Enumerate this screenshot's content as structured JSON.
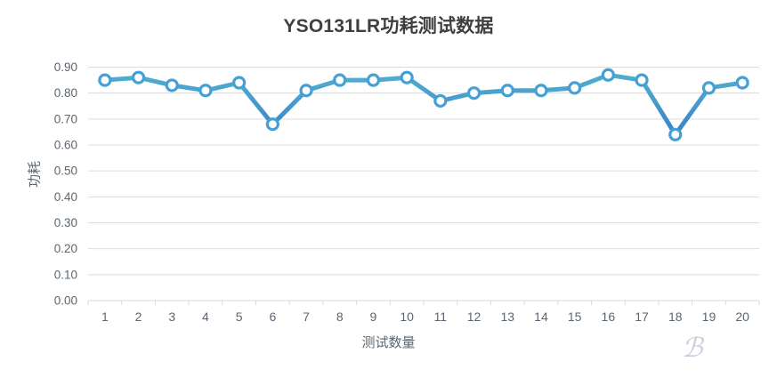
{
  "chart_data": {
    "type": "line",
    "title": "YSO131LR功耗测试数据",
    "xlabel": "测试数量",
    "ylabel": "功耗",
    "categories": [
      1,
      2,
      3,
      4,
      5,
      6,
      7,
      8,
      9,
      10,
      11,
      12,
      13,
      14,
      15,
      16,
      17,
      18,
      19,
      20
    ],
    "series": [
      {
        "name": "功耗",
        "values": [
          0.85,
          0.86,
          0.83,
          0.81,
          0.84,
          0.68,
          0.81,
          0.85,
          0.85,
          0.86,
          0.77,
          0.8,
          0.81,
          0.81,
          0.82,
          0.87,
          0.85,
          0.64,
          0.82,
          0.84
        ]
      }
    ],
    "ylim": [
      0.0,
      0.9
    ],
    "ytick_step": 0.1,
    "ytick_decimals": 2,
    "grid": "horizontal",
    "legend": "none",
    "marker": "open-circle",
    "colors": {
      "line_gradient": [
        {
          "offset": 0.0,
          "color": "#55B1CB"
        },
        {
          "offset": 0.1,
          "color": "#4AA4CF"
        },
        {
          "offset": 0.3,
          "color": "#3C7EC3"
        },
        {
          "offset": 1.0,
          "color": "#2F5FB4"
        }
      ],
      "marker_stroke": "#45A1D5",
      "marker_fill": "#FFFFFF",
      "grid": "#DCDCDC",
      "axis": "#D9D9D9",
      "tick_label": "#5B6670",
      "title": "#3F3F3F",
      "axis_title": "#5B6670",
      "watermark": "#C9CDDC"
    }
  },
  "watermark": {
    "glyph": "ℬ"
  }
}
